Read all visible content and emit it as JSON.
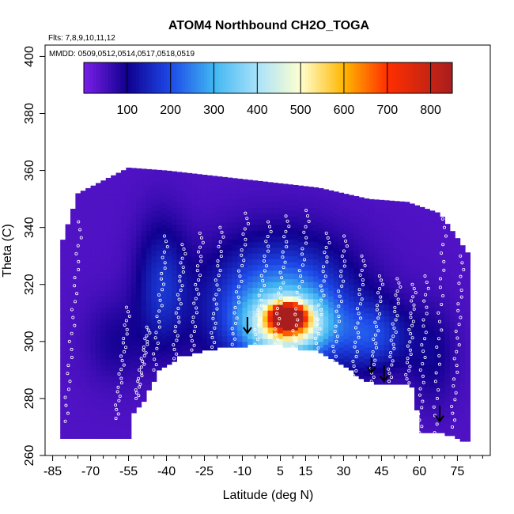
{
  "chart_data": {
    "type": "heatmap",
    "title": "ATOM4 Northbound CH2O_TOGA",
    "flights_note": "Flts: 7,8,9,10,11,12",
    "dates_note": "MMDD: 0509,0512,0514,0517,0518,0519",
    "xlabel": "Latitude (deg N)",
    "ylabel": "Theta (C)",
    "xlim": [
      -88,
      88
    ],
    "ylim": [
      260,
      404
    ],
    "x_ticks": [
      -85,
      -70,
      -55,
      -40,
      -25,
      -10,
      5,
      15,
      30,
      45,
      60,
      75
    ],
    "y_ticks": [
      260,
      280,
      300,
      320,
      340,
      360,
      380,
      400
    ],
    "colorbar": {
      "range": [
        0,
        850
      ],
      "ticks": [
        100,
        200,
        300,
        400,
        500,
        600,
        700,
        800
      ],
      "stops": [
        {
          "v": 0,
          "color": "#7a1fe8"
        },
        {
          "v": 100,
          "color": "#10008f"
        },
        {
          "v": 200,
          "color": "#1d49e8"
        },
        {
          "v": 300,
          "color": "#40b6f2"
        },
        {
          "v": 400,
          "color": "#a8e2fa"
        },
        {
          "v": 500,
          "color": "#ffffd0"
        },
        {
          "v": 600,
          "color": "#ffb700"
        },
        {
          "v": 700,
          "color": "#ff2f00"
        },
        {
          "v": 850,
          "color": "#a81e1e"
        }
      ]
    },
    "field_blobs": [
      {
        "lat": 8,
        "theta": 309,
        "rlat": 6,
        "rtheta": 4,
        "amp": 700
      },
      {
        "lat": 8,
        "theta": 306,
        "rlat": 14,
        "rtheta": 9,
        "amp": 380
      },
      {
        "lat": 5,
        "theta": 312,
        "rlat": 28,
        "rtheta": 22,
        "amp": 260
      },
      {
        "lat": 42,
        "theta": 302,
        "rlat": 14,
        "rtheta": 12,
        "amp": 130
      },
      {
        "lat": -42,
        "theta": 320,
        "rlat": 10,
        "rtheta": 22,
        "amp": 120
      },
      {
        "lat": 65,
        "theta": 295,
        "rlat": 10,
        "rtheta": 18,
        "amp": 60
      },
      {
        "lat": -60,
        "theta": 300,
        "rlat": 12,
        "rtheta": 15,
        "amp": 50
      }
    ],
    "field_base": 40,
    "domain_top": [
      [
        -82,
        333
      ],
      [
        -75,
        352
      ],
      [
        -55,
        361
      ],
      [
        -40,
        360
      ],
      [
        -20,
        358
      ],
      [
        0,
        356
      ],
      [
        20,
        354
      ],
      [
        40,
        350
      ],
      [
        55,
        349
      ],
      [
        68,
        345
      ],
      [
        80,
        330
      ]
    ],
    "domain_bottom": [
      [
        -84,
        266
      ],
      [
        -54,
        266
      ],
      [
        -54,
        275
      ],
      [
        -50,
        278
      ],
      [
        -43,
        290
      ],
      [
        -35,
        295
      ],
      [
        -20,
        298
      ],
      [
        -8,
        299
      ],
      [
        5,
        299
      ],
      [
        20,
        297
      ],
      [
        30,
        292
      ],
      [
        38,
        287
      ],
      [
        45,
        285
      ],
      [
        52,
        286
      ],
      [
        58,
        284
      ],
      [
        60,
        268
      ],
      [
        65,
        268
      ],
      [
        70,
        268
      ],
      [
        80,
        265
      ]
    ],
    "arrows": [
      {
        "lat": -8,
        "theta": 303
      },
      {
        "lat": 41,
        "theta": 289
      },
      {
        "lat": 46,
        "theta": 286
      },
      {
        "lat": 68,
        "theta": 272
      }
    ],
    "sample_curves": [
      {
        "lat0": -60,
        "lat1": -55,
        "t0": 273,
        "t1": 312
      },
      {
        "lat0": -52,
        "lat1": -47,
        "t0": 280,
        "t1": 305
      },
      {
        "lat0": -45,
        "lat1": -40,
        "t0": 290,
        "t1": 337
      },
      {
        "lat0": -37,
        "lat1": -33,
        "t0": 294,
        "t1": 334
      },
      {
        "lat0": -30,
        "lat1": -26,
        "t0": 297,
        "t1": 338
      },
      {
        "lat0": -22,
        "lat1": -18,
        "t0": 298,
        "t1": 340
      },
      {
        "lat0": -14,
        "lat1": -8,
        "t0": 299,
        "t1": 345
      },
      {
        "lat0": -5,
        "lat1": 1,
        "t0": 299,
        "t1": 342
      },
      {
        "lat0": 3,
        "lat1": 8,
        "t0": 299,
        "t1": 344
      },
      {
        "lat0": 10,
        "lat1": 16,
        "t0": 298,
        "t1": 346
      },
      {
        "lat0": 19,
        "lat1": 24,
        "t0": 296,
        "t1": 338
      },
      {
        "lat0": 26,
        "lat1": 31,
        "t0": 293,
        "t1": 337
      },
      {
        "lat0": 34,
        "lat1": 38,
        "t0": 288,
        "t1": 330
      },
      {
        "lat0": 41,
        "lat1": 45,
        "t0": 286,
        "t1": 323
      },
      {
        "lat0": 48,
        "lat1": 52,
        "t0": 286,
        "t1": 322
      },
      {
        "lat0": 55,
        "lat1": 58,
        "t0": 284,
        "t1": 320
      },
      {
        "lat0": 60,
        "lat1": 63,
        "t0": 268,
        "t1": 323
      },
      {
        "lat0": 66,
        "lat1": 70,
        "t0": 268,
        "t1": 343
      },
      {
        "lat0": 73,
        "lat1": 77,
        "t0": 270,
        "t1": 330
      },
      {
        "lat0": -80,
        "lat1": -74,
        "t0": 272,
        "t1": 342
      }
    ]
  }
}
